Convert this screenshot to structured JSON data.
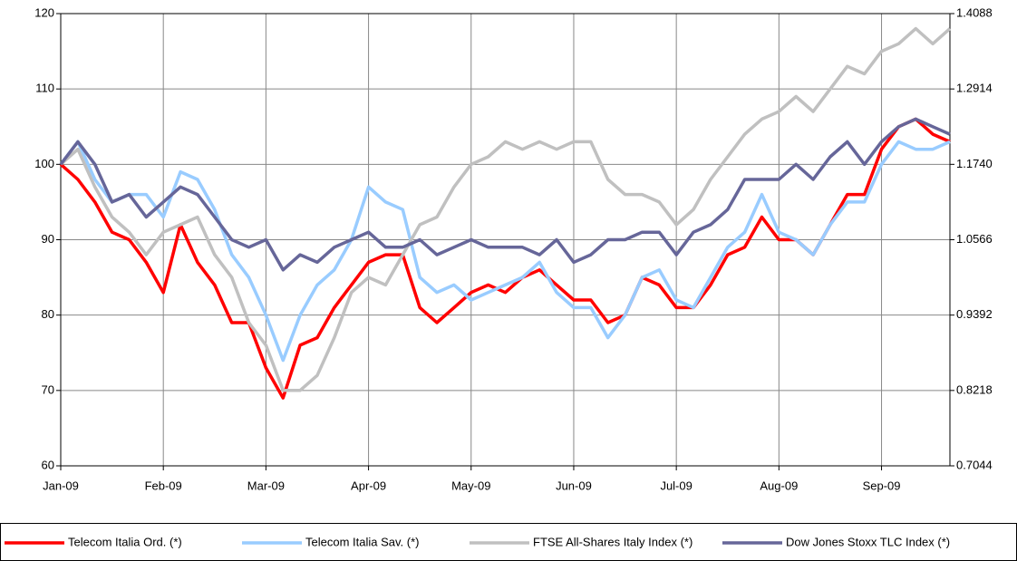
{
  "chart_data": {
    "type": "line",
    "categories": [
      "Jan-09",
      null,
      null,
      null,
      null,
      null,
      "Feb-09",
      null,
      null,
      null,
      null,
      null,
      "Mar-09",
      null,
      null,
      null,
      null,
      null,
      "Apr-09",
      null,
      null,
      null,
      null,
      null,
      "May-09",
      null,
      null,
      null,
      null,
      null,
      "Jun-09",
      null,
      null,
      null,
      null,
      null,
      "Jul-09",
      null,
      null,
      null,
      null,
      null,
      "Aug-09",
      null,
      null,
      null,
      null,
      null,
      "Sep-09",
      null,
      null,
      null,
      null
    ],
    "series": [
      {
        "name": "Telecom Italia Ord. (*)",
        "color": "#ff0000",
        "values": [
          100,
          98,
          95,
          91,
          90,
          87,
          83,
          92,
          87,
          84,
          79,
          79,
          73,
          69,
          76,
          77,
          81,
          84,
          87,
          88,
          88,
          81,
          79,
          81,
          83,
          84,
          83,
          85,
          86,
          84,
          82,
          82,
          79,
          80,
          85,
          84,
          81,
          81,
          84,
          88,
          89,
          93,
          90,
          90,
          88,
          92,
          96,
          96,
          102,
          105,
          106,
          104,
          103
        ]
      },
      {
        "name": "Telecom Italia Sav. (*)",
        "color": "#99ccff",
        "values": [
          100,
          103,
          98,
          95,
          96,
          96,
          93,
          99,
          98,
          94,
          88,
          85,
          80,
          74,
          80,
          84,
          86,
          90,
          97,
          95,
          94,
          85,
          83,
          84,
          82,
          83,
          84,
          85,
          87,
          83,
          81,
          81,
          77,
          80,
          85,
          86,
          82,
          81,
          85,
          89,
          91,
          96,
          91,
          90,
          88,
          92,
          95,
          95,
          100,
          103,
          102,
          102,
          103
        ]
      },
      {
        "name": "FTSE All-Shares Italy Index (*)",
        "color": "#c0c0c0",
        "values": [
          100,
          102,
          97,
          93,
          91,
          88,
          91,
          92,
          93,
          88,
          85,
          79,
          76,
          70,
          70,
          72,
          77,
          83,
          85,
          84,
          88,
          92,
          93,
          97,
          100,
          101,
          103,
          102,
          103,
          102,
          103,
          103,
          98,
          96,
          96,
          95,
          92,
          94,
          98,
          101,
          104,
          106,
          107,
          109,
          107,
          110,
          113,
          112,
          115,
          116,
          118,
          116,
          118
        ]
      },
      {
        "name": "Dow Jones Stoxx TLC Index (*)",
        "color": "#666699",
        "values": [
          100,
          103,
          100,
          95,
          96,
          93,
          95,
          97,
          96,
          93,
          90,
          89,
          90,
          86,
          88,
          87,
          89,
          90,
          91,
          89,
          89,
          90,
          88,
          89,
          90,
          89,
          89,
          89,
          88,
          90,
          87,
          88,
          90,
          90,
          91,
          91,
          88,
          91,
          92,
          94,
          98,
          98,
          98,
          100,
          98,
          101,
          103,
          100,
          103,
          105,
          106,
          105,
          104
        ]
      }
    ],
    "ylim": [
      60,
      120
    ],
    "yticks": [
      60,
      70,
      80,
      90,
      100,
      110,
      120
    ],
    "y2lim": [
      0.7044,
      1.4088
    ],
    "y2ticks": [
      0.7044,
      0.8218,
      0.9392,
      1.0566,
      {
        "value": 1.174,
        "label": "1.1740"
      },
      1.2914,
      1.4088
    ],
    "grid": true,
    "legend": "bottom"
  }
}
